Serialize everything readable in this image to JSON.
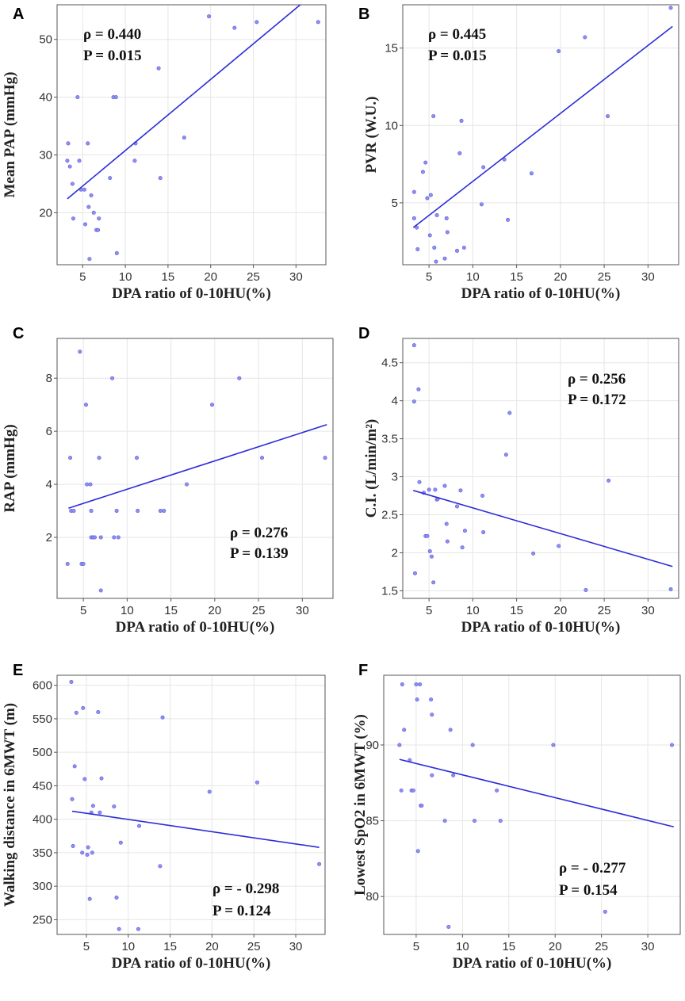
{
  "chart_data": [
    {
      "panel": "A",
      "type": "scatter",
      "xlabel": "DPA ratio of 0-10HU(%)",
      "ylabel": "Mean PAP (mmHg)",
      "xlim": [
        2,
        33.5
      ],
      "ylim": [
        11,
        56
      ],
      "xticks": [
        5,
        10,
        15,
        20,
        25,
        30
      ],
      "yticks": [
        20,
        30,
        40,
        50
      ],
      "stats": [
        "ρ = 0.440",
        "P = 0.015"
      ],
      "fit": {
        "x": [
          3.2,
          30.5
        ],
        "y": [
          22.4,
          56
        ]
      },
      "points": [
        [
          3.3,
          32
        ],
        [
          3.2,
          29
        ],
        [
          3.5,
          28
        ],
        [
          3.8,
          25
        ],
        [
          3.9,
          19
        ],
        [
          4.4,
          40
        ],
        [
          4.6,
          29
        ],
        [
          4.8,
          24
        ],
        [
          5.2,
          24
        ],
        [
          5.3,
          18
        ],
        [
          5.6,
          32
        ],
        [
          5.7,
          21
        ],
        [
          5.8,
          12
        ],
        [
          6.0,
          23
        ],
        [
          6.3,
          20
        ],
        [
          6.6,
          17
        ],
        [
          6.8,
          17
        ],
        [
          6.9,
          19
        ],
        [
          8.2,
          26
        ],
        [
          8.6,
          40
        ],
        [
          8.9,
          40
        ],
        [
          9.0,
          13
        ],
        [
          11.2,
          32
        ],
        [
          11.1,
          29
        ],
        [
          13.9,
          45
        ],
        [
          14.1,
          26
        ],
        [
          16.9,
          33
        ],
        [
          19.8,
          54
        ],
        [
          22.8,
          52
        ],
        [
          25.4,
          53
        ],
        [
          32.6,
          53
        ]
      ]
    },
    {
      "panel": "B",
      "type": "scatter",
      "xlabel": "DPA ratio of 0-10HU(%)",
      "ylabel": "PVR (W.U.)",
      "xlim": [
        2,
        33.5
      ],
      "ylim": [
        1,
        17.8
      ],
      "xticks": [
        5,
        10,
        15,
        20,
        25,
        30
      ],
      "yticks": [
        5,
        10,
        15
      ],
      "stats": [
        "ρ = 0.445",
        "P = 0.015"
      ],
      "fit": {
        "x": [
          3.2,
          32.8
        ],
        "y": [
          3.4,
          16.4
        ]
      },
      "points": [
        [
          3.3,
          5.7
        ],
        [
          3.3,
          4.0
        ],
        [
          3.6,
          3.4
        ],
        [
          3.7,
          2.0
        ],
        [
          4.3,
          7.0
        ],
        [
          4.6,
          7.6
        ],
        [
          4.8,
          5.3
        ],
        [
          5.1,
          2.9
        ],
        [
          5.2,
          5.5
        ],
        [
          5.5,
          10.6
        ],
        [
          5.6,
          2.1
        ],
        [
          5.8,
          1.2
        ],
        [
          5.9,
          4.2
        ],
        [
          6.8,
          1.4
        ],
        [
          7.0,
          4.0
        ],
        [
          7.1,
          3.1
        ],
        [
          8.2,
          1.9
        ],
        [
          8.5,
          8.2
        ],
        [
          8.7,
          10.3
        ],
        [
          9.0,
          2.1
        ],
        [
          11.0,
          4.9
        ],
        [
          11.2,
          7.3
        ],
        [
          13.6,
          7.8
        ],
        [
          14.0,
          3.9
        ],
        [
          16.7,
          6.9
        ],
        [
          19.8,
          14.8
        ],
        [
          22.8,
          15.7
        ],
        [
          25.4,
          10.6
        ],
        [
          32.6,
          17.6
        ]
      ]
    },
    {
      "panel": "C",
      "type": "scatter",
      "xlabel": "DPA ratio of 0-10HU(%)",
      "ylabel": "RAP (mmHg)",
      "xlim": [
        2,
        33.5
      ],
      "ylim": [
        -0.3,
        9.5
      ],
      "xticks": [
        5,
        10,
        15,
        20,
        25,
        30
      ],
      "yticks": [
        2,
        4,
        6,
        8
      ],
      "stats": [
        "ρ = 0.276",
        "P = 0.139"
      ],
      "fit": {
        "x": [
          3.3,
          32.8
        ],
        "y": [
          3.1,
          6.25
        ]
      },
      "points": [
        [
          3.2,
          1
        ],
        [
          3.5,
          5
        ],
        [
          3.6,
          3
        ],
        [
          3.9,
          3
        ],
        [
          4.6,
          9
        ],
        [
          4.8,
          1
        ],
        [
          5.0,
          1
        ],
        [
          5.3,
          7
        ],
        [
          5.4,
          4
        ],
        [
          5.8,
          4
        ],
        [
          5.9,
          3
        ],
        [
          5.9,
          2
        ],
        [
          6.1,
          2
        ],
        [
          6.3,
          2
        ],
        [
          6.8,
          5
        ],
        [
          7.0,
          2
        ],
        [
          7.0,
          0
        ],
        [
          8.3,
          8
        ],
        [
          8.5,
          2
        ],
        [
          8.8,
          3
        ],
        [
          9.0,
          2
        ],
        [
          11.1,
          5
        ],
        [
          11.2,
          3
        ],
        [
          13.8,
          3
        ],
        [
          14.2,
          3
        ],
        [
          16.8,
          4
        ],
        [
          19.7,
          7
        ],
        [
          22.8,
          8
        ],
        [
          25.4,
          5
        ],
        [
          32.6,
          5
        ]
      ]
    },
    {
      "panel": "D",
      "type": "scatter",
      "xlabel": "DPA ratio of 0-10HU(%)",
      "ylabel": "C.I. (L/min/m²)",
      "xlim": [
        2,
        33.5
      ],
      "ylim": [
        1.4,
        4.82
      ],
      "xticks": [
        5,
        10,
        15,
        20,
        25,
        30
      ],
      "yticks": [
        1.5,
        2.0,
        2.5,
        3.0,
        3.5,
        4.0,
        4.5
      ],
      "stats": [
        "ρ = 0.256",
        "P = 0.172"
      ],
      "fit": {
        "x": [
          3.2,
          32.8
        ],
        "y": [
          2.82,
          1.82
        ]
      },
      "points": [
        [
          3.3,
          4.73
        ],
        [
          3.3,
          3.99
        ],
        [
          3.4,
          1.73
        ],
        [
          3.8,
          4.15
        ],
        [
          3.9,
          2.93
        ],
        [
          4.4,
          2.79
        ],
        [
          4.6,
          2.22
        ],
        [
          4.8,
          2.22
        ],
        [
          5.0,
          2.83
        ],
        [
          5.1,
          2.02
        ],
        [
          5.3,
          1.95
        ],
        [
          5.5,
          1.61
        ],
        [
          5.7,
          2.83
        ],
        [
          5.9,
          2.7
        ],
        [
          6.0,
          2.71
        ],
        [
          6.8,
          2.88
        ],
        [
          7.0,
          2.38
        ],
        [
          7.1,
          2.15
        ],
        [
          8.2,
          2.61
        ],
        [
          8.6,
          2.82
        ],
        [
          8.8,
          2.07
        ],
        [
          9.1,
          2.29
        ],
        [
          11.1,
          2.75
        ],
        [
          11.2,
          2.27
        ],
        [
          13.8,
          3.29
        ],
        [
          14.2,
          3.84
        ],
        [
          16.9,
          1.99
        ],
        [
          19.8,
          2.09
        ],
        [
          22.9,
          1.51
        ],
        [
          25.5,
          2.95
        ],
        [
          32.6,
          1.52
        ]
      ]
    },
    {
      "panel": "E",
      "type": "scatter",
      "xlabel": "DPA ratio of 0-10HU(%)",
      "ylabel": "Walking distance in 6MWT (m)",
      "xlim": [
        1.5,
        33.5
      ],
      "ylim": [
        228,
        615
      ],
      "xticks": [
        5,
        10,
        15,
        20,
        25,
        30
      ],
      "yticks": [
        250,
        300,
        350,
        400,
        450,
        500,
        550,
        600
      ],
      "stats": [
        "ρ = - 0.298",
        "P = 0.124"
      ],
      "fit": {
        "x": [
          3.3,
          32.8
        ],
        "y": [
          412,
          358
        ]
      },
      "points": [
        [
          3.2,
          605
        ],
        [
          3.3,
          430
        ],
        [
          3.4,
          360
        ],
        [
          3.6,
          479
        ],
        [
          3.8,
          559
        ],
        [
          4.5,
          350
        ],
        [
          4.6,
          566
        ],
        [
          4.8,
          460
        ],
        [
          5.1,
          347
        ],
        [
          5.2,
          358
        ],
        [
          5.4,
          281
        ],
        [
          5.6,
          410
        ],
        [
          5.7,
          350
        ],
        [
          5.8,
          420
        ],
        [
          6.4,
          560
        ],
        [
          6.6,
          410
        ],
        [
          6.8,
          461
        ],
        [
          8.3,
          419
        ],
        [
          8.6,
          283
        ],
        [
          8.9,
          236
        ],
        [
          9.1,
          365
        ],
        [
          11.2,
          236
        ],
        [
          11.3,
          390
        ],
        [
          13.8,
          330
        ],
        [
          14.1,
          552
        ],
        [
          19.7,
          441
        ],
        [
          25.4,
          455
        ],
        [
          32.8,
          333
        ]
      ]
    },
    {
      "panel": "F",
      "type": "scatter",
      "xlabel": "DPA ratio of 0-10HU(%)",
      "ylabel": "Lowest SpO2 in 6MWT (%)",
      "xlim": [
        1.5,
        33.5
      ],
      "ylim": [
        77.5,
        94.6
      ],
      "xticks": [
        5,
        10,
        15,
        20,
        25,
        30
      ],
      "yticks": [
        80,
        85,
        90
      ],
      "stats": [
        "ρ = - 0.277",
        "P = 0.154"
      ],
      "fit": {
        "x": [
          3.2,
          32.8
        ],
        "y": [
          89.05,
          84.6
        ]
      },
      "points": [
        [
          3.2,
          90
        ],
        [
          3.4,
          87
        ],
        [
          3.5,
          94
        ],
        [
          3.7,
          91
        ],
        [
          4.3,
          89
        ],
        [
          4.5,
          87
        ],
        [
          4.7,
          87
        ],
        [
          5.0,
          94
        ],
        [
          5.1,
          93
        ],
        [
          5.2,
          83
        ],
        [
          5.4,
          94
        ],
        [
          5.5,
          86
        ],
        [
          5.6,
          86
        ],
        [
          6.6,
          93
        ],
        [
          6.7,
          92
        ],
        [
          6.7,
          88
        ],
        [
          8.1,
          85
        ],
        [
          8.5,
          78
        ],
        [
          8.7,
          91
        ],
        [
          9.0,
          88
        ],
        [
          11.1,
          90
        ],
        [
          11.3,
          85
        ],
        [
          13.7,
          87
        ],
        [
          14.1,
          85
        ],
        [
          19.8,
          90
        ],
        [
          25.4,
          79
        ],
        [
          32.6,
          90
        ]
      ]
    }
  ]
}
